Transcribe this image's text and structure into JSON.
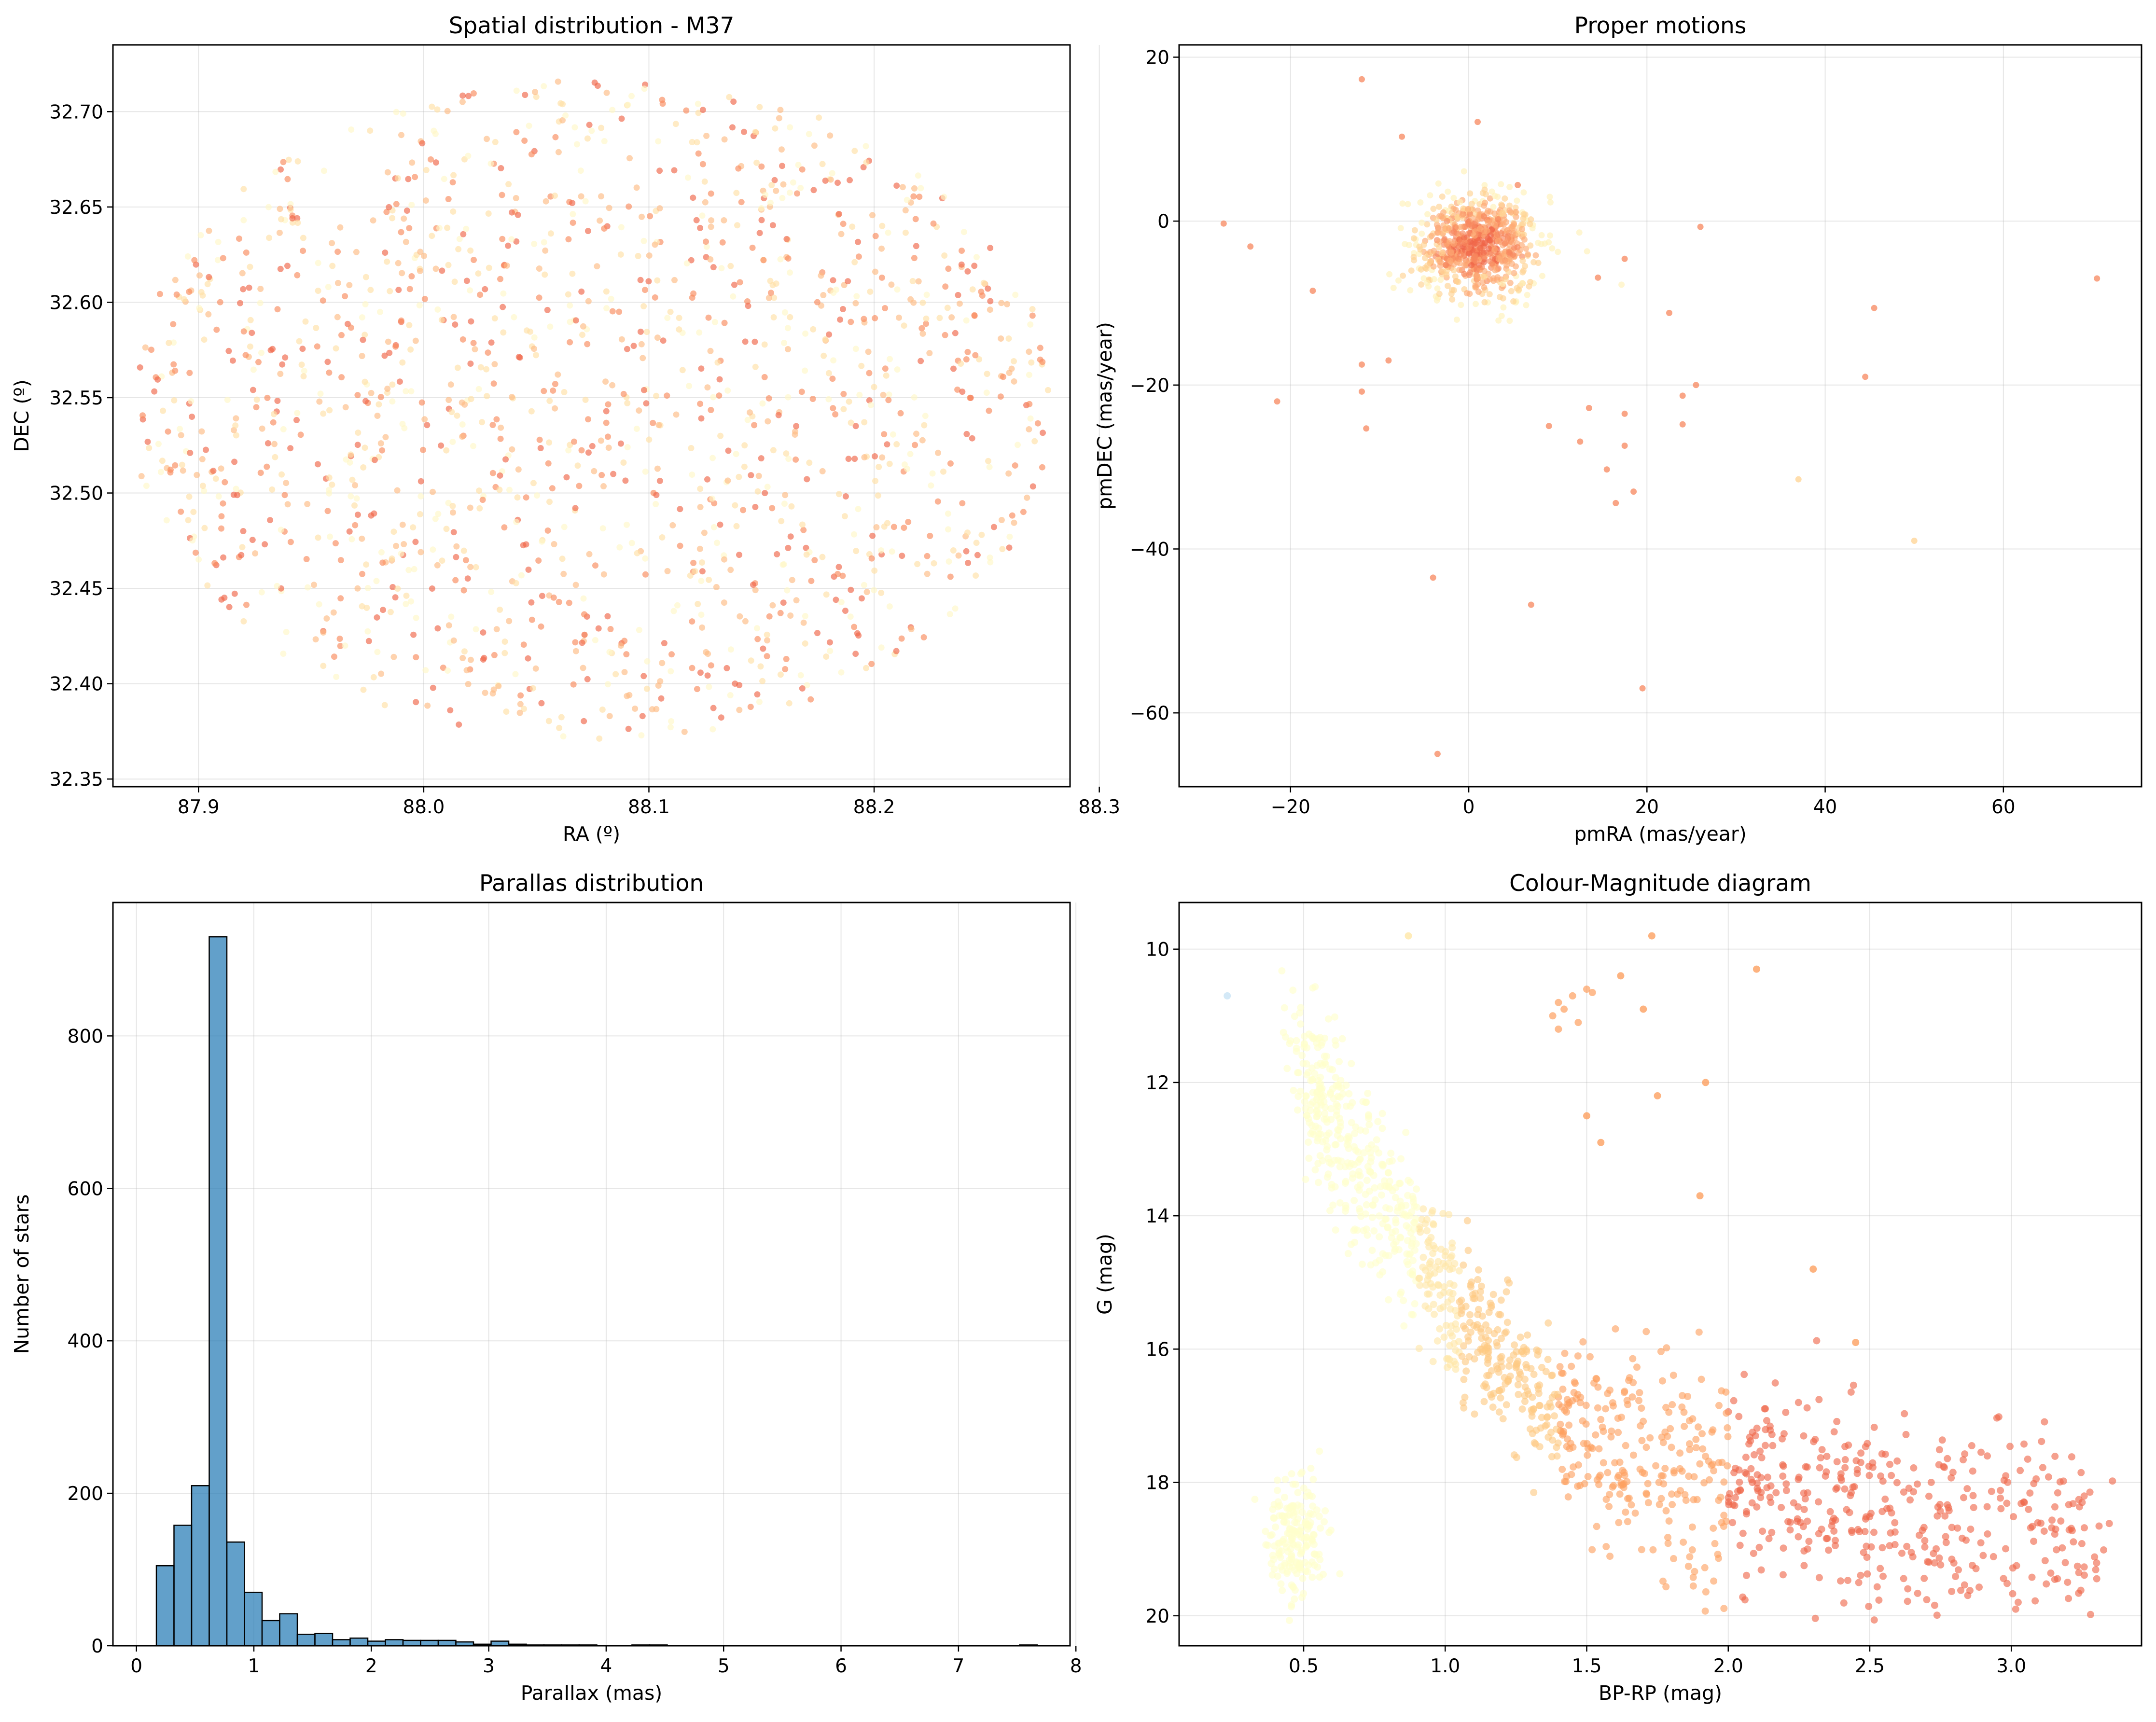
{
  "chart_data": [
    {
      "type": "scatter",
      "title": "Spatial distribution - M37",
      "xlabel": "RA (º)",
      "ylabel": "DEC (º)",
      "xlim": [
        87.862,
        88.287
      ],
      "ylim": [
        32.346,
        32.735
      ],
      "xticks": [
        87.9,
        88.0,
        88.1,
        88.2,
        88.3
      ],
      "xtick_labels": [
        "87.9",
        "88.0",
        "88.1",
        "88.2",
        "88.3"
      ],
      "yticks": [
        32.35,
        32.4,
        32.45,
        32.5,
        32.55,
        32.6,
        32.65,
        32.7
      ],
      "ytick_labels": [
        "32.35",
        "32.40",
        "32.45",
        "32.50",
        "32.55",
        "32.60",
        "32.65",
        "32.70"
      ],
      "grid": true,
      "distribution": {
        "center": [
          88.075,
          32.545
        ],
        "radius_ra": 0.205,
        "radius_dec": 0.175,
        "n_points": 1500
      },
      "colormap": [
        "#fff7c8",
        "#ffe0a6",
        "#fdbb84",
        "#f98a5c",
        "#ef6548"
      ]
    },
    {
      "type": "scatter",
      "title": "Proper motions",
      "xlabel": "pmRA (mas/year)",
      "ylabel": "pmDEC (mas/year)",
      "xlim": [
        -32.5,
        75.5
      ],
      "ylim": [
        -69.0,
        21.5
      ],
      "xticks": [
        -20,
        0,
        20,
        40,
        60
      ],
      "xtick_labels": [
        "−20",
        "0",
        "20",
        "40",
        "60"
      ],
      "yticks": [
        -60,
        -40,
        -20,
        0,
        20
      ],
      "ytick_labels": [
        "−60",
        "−40",
        "−20",
        "0",
        "20"
      ],
      "grid": true,
      "cluster": {
        "center": [
          1.0,
          -3.0
        ],
        "spread": [
          3.5,
          3.0
        ],
        "n_points": 700
      },
      "outliers": [
        [
          -12,
          17.3
        ],
        [
          -7.5,
          10.3
        ],
        [
          1,
          12.1
        ],
        [
          -27.5,
          -0.3
        ],
        [
          -24.5,
          -3.1
        ],
        [
          -17.5,
          -8.5
        ],
        [
          -21.5,
          -22
        ],
        [
          -12,
          -17.5
        ],
        [
          -12,
          -20.8
        ],
        [
          -11.5,
          -25.3
        ],
        [
          -9,
          -17
        ],
        [
          5.5,
          4.4
        ],
        [
          14.5,
          -6.9
        ],
        [
          17.5,
          -4.6
        ],
        [
          22.5,
          -11.2
        ],
        [
          24,
          -21.3
        ],
        [
          25.5,
          -20
        ],
        [
          24,
          -24.8
        ],
        [
          26,
          -0.7
        ],
        [
          12.5,
          -26.9
        ],
        [
          15.5,
          -30.3
        ],
        [
          17.5,
          -27.4
        ],
        [
          17.5,
          -23.5
        ],
        [
          16.5,
          -34.4
        ],
        [
          18.5,
          -33
        ],
        [
          13.5,
          -22.8
        ],
        [
          9,
          -25
        ],
        [
          37,
          -31.5
        ],
        [
          44.5,
          -19
        ],
        [
          45.5,
          -10.6
        ],
        [
          50,
          -39
        ],
        [
          70.5,
          -7
        ],
        [
          7,
          -46.8
        ],
        [
          -4,
          -43.5
        ],
        [
          19.5,
          -57
        ],
        [
          -3.5,
          -65
        ]
      ],
      "colormap": [
        "#fff1b8",
        "#ffd392",
        "#fdab74",
        "#f7875e",
        "#ef6548"
      ]
    },
    {
      "type": "bar",
      "title": "Parallas distribution",
      "xlabel": "Parallax (mas)",
      "ylabel": "Number of stars",
      "xlim": [
        -0.2,
        7.95
      ],
      "ylim": [
        0,
        975
      ],
      "xticks": [
        0,
        1,
        2,
        3,
        4,
        5,
        6,
        7,
        8
      ],
      "xtick_labels": [
        "0",
        "1",
        "2",
        "3",
        "4",
        "5",
        "6",
        "7",
        "8"
      ],
      "yticks": [
        0,
        200,
        400,
        600,
        800
      ],
      "ytick_labels": [
        "0",
        "200",
        "400",
        "600",
        "800"
      ],
      "grid": true,
      "bin_start": 0.17,
      "bin_width": 0.15,
      "values": [
        105,
        158,
        210,
        930,
        136,
        70,
        33,
        42,
        15,
        16,
        8,
        10,
        6,
        8,
        7,
        7,
        7,
        5,
        2,
        6,
        2,
        1,
        1,
        1,
        1,
        0,
        0,
        1,
        1,
        0,
        0,
        0,
        0,
        0,
        0,
        0,
        0,
        0,
        0,
        0,
        0,
        0,
        0,
        0,
        0,
        0,
        0,
        0,
        0,
        1
      ]
    },
    {
      "type": "scatter",
      "title": "Colour-Magnitude diagram",
      "xlabel": "BP-RP (mag)",
      "ylabel": "G (mag)",
      "xlim": [
        0.06,
        3.46
      ],
      "ylim": [
        20.45,
        9.3
      ],
      "xticks": [
        0.5,
        1.0,
        1.5,
        2.0,
        2.5,
        3.0
      ],
      "xtick_labels": [
        "0.5",
        "1.0",
        "1.5",
        "2.0",
        "2.5",
        "3.0"
      ],
      "yticks": [
        10,
        12,
        14,
        16,
        18,
        20
      ],
      "ytick_labels": [
        "10",
        "12",
        "14",
        "16",
        "18",
        "20"
      ],
      "grid": true,
      "main_sequence": [
        [
          0.5,
          11.6
        ],
        [
          0.7,
          13.4
        ],
        [
          0.9,
          14.6
        ],
        [
          1.1,
          15.8
        ],
        [
          1.3,
          16.6
        ],
        [
          1.5,
          17.4
        ],
        [
          1.7,
          17.8
        ],
        [
          2.0,
          18.0
        ],
        [
          2.5,
          18.3
        ],
        [
          3.0,
          18.7
        ],
        [
          3.3,
          18.8
        ]
      ],
      "red_clump": [
        [
          1.45,
          10.7
        ],
        [
          1.4,
          11.2
        ],
        [
          1.5,
          10.6
        ],
        [
          1.42,
          10.9
        ],
        [
          1.38,
          11.0
        ],
        [
          1.47,
          11.1
        ],
        [
          1.52,
          10.65
        ],
        [
          1.4,
          10.8
        ]
      ],
      "highlights": [
        [
          0.23,
          10.7
        ],
        [
          0.87,
          9.8
        ],
        [
          1.73,
          9.8
        ],
        [
          1.62,
          10.4
        ],
        [
          1.7,
          10.9
        ],
        [
          2.1,
          10.3
        ],
        [
          1.92,
          12.0
        ],
        [
          1.75,
          12.2
        ],
        [
          1.5,
          12.5
        ],
        [
          1.55,
          12.9
        ],
        [
          1.9,
          13.7
        ],
        [
          2.3,
          14.8
        ],
        [
          2.45,
          15.9
        ]
      ],
      "colormap": [
        "#ffffcc",
        "#ffe7a8",
        "#fec983",
        "#fda060",
        "#ef6548"
      ]
    }
  ]
}
